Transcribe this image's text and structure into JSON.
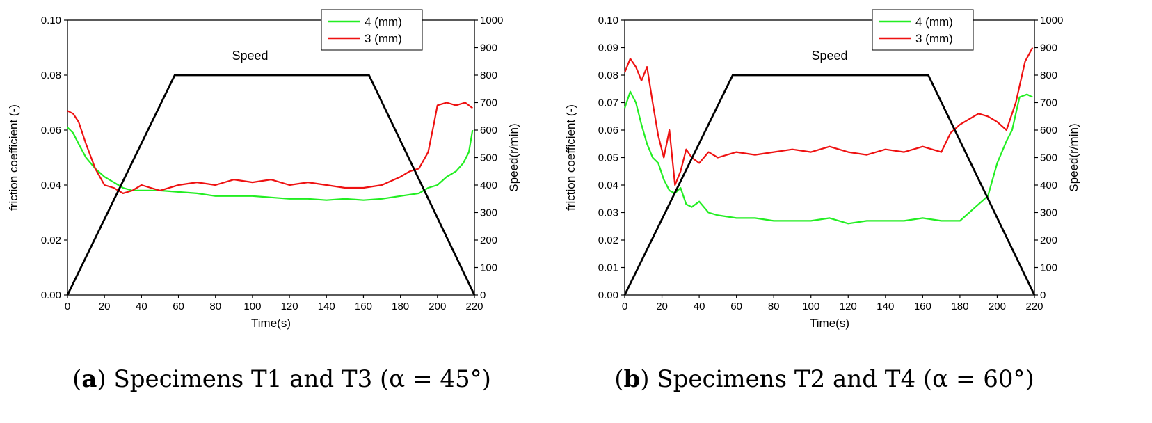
{
  "chart_data": [
    {
      "type": "line",
      "caption_letter": "a",
      "caption_text": "Specimens T1 and T3 (α = 45°)",
      "annotation": "Speed",
      "xlabel": "Time(s)",
      "ylabel": "friction coefficient (-)",
      "y2label": "Speed(r/min)",
      "xlim": [
        0,
        220
      ],
      "ylim": [
        0,
        0.1
      ],
      "y2lim": [
        0,
        1000
      ],
      "xticks": [
        "0",
        "20",
        "40",
        "60",
        "80",
        "100",
        "120",
        "140",
        "160",
        "180",
        "200",
        "220"
      ],
      "yticks": [
        "0.00",
        "0.02",
        "0.04",
        "0.06",
        "0.08",
        "0.10"
      ],
      "y2ticks": [
        "0",
        "100",
        "200",
        "300",
        "400",
        "500",
        "600",
        "700",
        "800",
        "900",
        "1000"
      ],
      "speed": {
        "x": [
          0,
          58,
          163,
          220
        ],
        "y": [
          0,
          800,
          800,
          0
        ]
      },
      "series": [
        {
          "name": "4 (mm)",
          "color": "#22ee22",
          "x": [
            0,
            3,
            6,
            10,
            15,
            20,
            25,
            30,
            35,
            40,
            50,
            60,
            70,
            80,
            90,
            100,
            110,
            120,
            130,
            140,
            150,
            160,
            170,
            180,
            190,
            195,
            200,
            205,
            210,
            214,
            217,
            219
          ],
          "y": [
            0.061,
            0.059,
            0.055,
            0.05,
            0.046,
            0.043,
            0.041,
            0.039,
            0.038,
            0.038,
            0.038,
            0.0375,
            0.037,
            0.036,
            0.036,
            0.036,
            0.0355,
            0.035,
            0.035,
            0.0345,
            0.035,
            0.0345,
            0.035,
            0.036,
            0.037,
            0.039,
            0.04,
            0.043,
            0.045,
            0.048,
            0.052,
            0.06
          ]
        },
        {
          "name": "3 (mm)",
          "color": "#ee1111",
          "x": [
            0,
            3,
            6,
            10,
            15,
            20,
            25,
            30,
            35,
            40,
            45,
            50,
            60,
            70,
            80,
            90,
            100,
            110,
            120,
            130,
            140,
            150,
            160,
            170,
            180,
            185,
            190,
            195,
            198,
            200,
            205,
            210,
            215,
            219
          ],
          "y": [
            0.067,
            0.066,
            0.063,
            0.055,
            0.046,
            0.04,
            0.039,
            0.037,
            0.038,
            0.04,
            0.039,
            0.038,
            0.04,
            0.041,
            0.04,
            0.042,
            0.041,
            0.042,
            0.04,
            0.041,
            0.04,
            0.039,
            0.039,
            0.04,
            0.043,
            0.045,
            0.046,
            0.052,
            0.062,
            0.069,
            0.07,
            0.069,
            0.07,
            0.068
          ]
        }
      ],
      "legend_position": "top-right"
    },
    {
      "type": "line",
      "caption_letter": "b",
      "caption_text": "Specimens T2 and T4 (α = 60°)",
      "annotation": "Speed",
      "xlabel": "Time(s)",
      "ylabel": "friction coefficient (-)",
      "y2label": "Speed(r/min)",
      "xlim": [
        0,
        220
      ],
      "ylim": [
        0,
        0.1
      ],
      "y2lim": [
        0,
        1000
      ],
      "xticks": [
        "0",
        "20",
        "40",
        "60",
        "80",
        "100",
        "120",
        "140",
        "160",
        "180",
        "200",
        "220"
      ],
      "yticks": [
        "0.00",
        "0.01",
        "0.02",
        "0.03",
        "0.04",
        "0.05",
        "0.06",
        "0.07",
        "0.08",
        "0.09",
        "0.10"
      ],
      "y2ticks": [
        "0",
        "100",
        "200",
        "300",
        "400",
        "500",
        "600",
        "700",
        "800",
        "900",
        "1000"
      ],
      "speed": {
        "x": [
          0,
          58,
          163,
          220
        ],
        "y": [
          0,
          800,
          800,
          0
        ]
      },
      "series": [
        {
          "name": "4 (mm)",
          "color": "#22ee22",
          "x": [
            0,
            3,
            6,
            9,
            12,
            15,
            18,
            21,
            24,
            27,
            30,
            33,
            36,
            40,
            45,
            50,
            60,
            70,
            80,
            90,
            100,
            110,
            120,
            130,
            140,
            150,
            160,
            170,
            180,
            185,
            190,
            195,
            200,
            205,
            208,
            212,
            216,
            219
          ],
          "y": [
            0.068,
            0.074,
            0.07,
            0.062,
            0.055,
            0.05,
            0.048,
            0.042,
            0.038,
            0.037,
            0.039,
            0.033,
            0.032,
            0.034,
            0.03,
            0.029,
            0.028,
            0.028,
            0.027,
            0.027,
            0.027,
            0.028,
            0.026,
            0.027,
            0.027,
            0.027,
            0.028,
            0.027,
            0.027,
            0.03,
            0.033,
            0.036,
            0.048,
            0.056,
            0.06,
            0.072,
            0.073,
            0.072
          ]
        },
        {
          "name": "3 (mm)",
          "color": "#ee1111",
          "x": [
            0,
            3,
            6,
            9,
            12,
            15,
            18,
            21,
            24,
            27,
            30,
            33,
            36,
            40,
            45,
            50,
            60,
            70,
            80,
            90,
            100,
            110,
            120,
            130,
            140,
            150,
            160,
            170,
            175,
            180,
            185,
            190,
            195,
            200,
            205,
            210,
            215,
            219
          ],
          "y": [
            0.081,
            0.086,
            0.083,
            0.078,
            0.083,
            0.07,
            0.058,
            0.05,
            0.06,
            0.04,
            0.045,
            0.053,
            0.05,
            0.048,
            0.052,
            0.05,
            0.052,
            0.051,
            0.052,
            0.053,
            0.052,
            0.054,
            0.052,
            0.051,
            0.053,
            0.052,
            0.054,
            0.052,
            0.059,
            0.062,
            0.064,
            0.066,
            0.065,
            0.063,
            0.06,
            0.07,
            0.085,
            0.09
          ]
        }
      ],
      "legend_position": "top-right"
    }
  ]
}
